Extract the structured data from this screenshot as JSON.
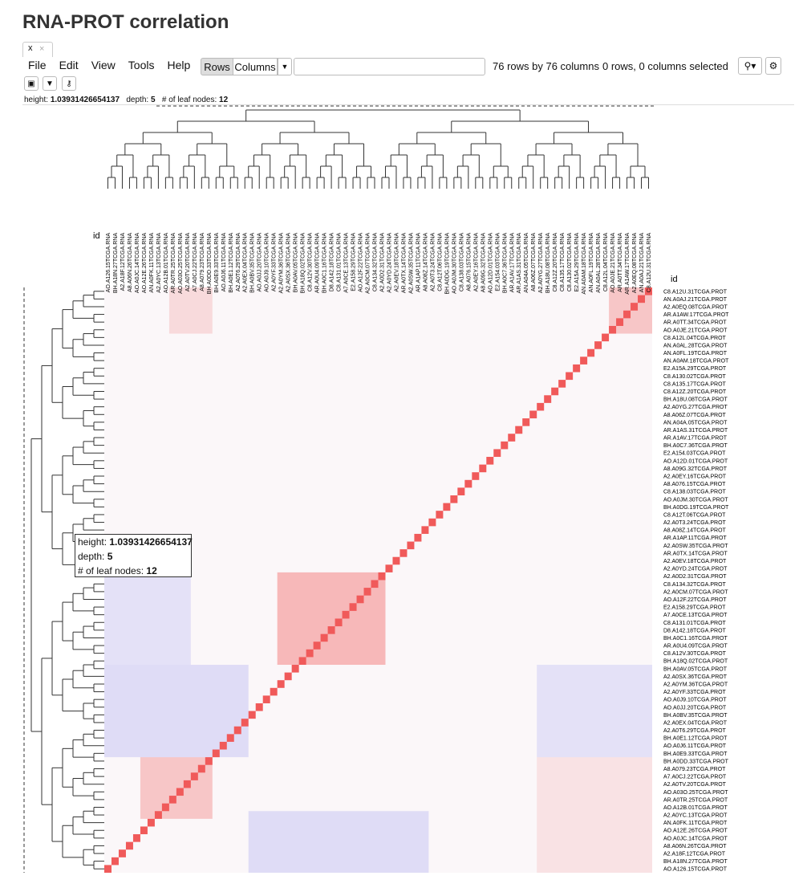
{
  "header": {
    "title": "RNA-PROT correlation",
    "tab": "x"
  },
  "menu": [
    "File",
    "Edit",
    "View",
    "Tools",
    "Help"
  ],
  "toolbar": {
    "rows_button": "Rows",
    "columns_button": "Columns",
    "dimensions": "76 rows by 76 columns",
    "selection": "0 rows, 0 columns selected"
  },
  "info": {
    "height_label": "height:",
    "height": "1.03931426654137",
    "depth_label": "depth:",
    "depth": "5",
    "leaves_label": "# of leaf nodes:",
    "leaves": "12"
  },
  "heatmap": {
    "column_header": "id",
    "row_header": "id",
    "rows": [
      "C8.A12U.31TCGA.PROT",
      "AN.A0AJ.21TCGA.PROT",
      "A2.A0EQ.08TCGA.PROT",
      "AR.A1AW.17TCGA.PROT",
      "AR.A0TT.34TCGA.PROT",
      "AO.A0JE.21TCGA.PROT",
      "C8.A12L.04TCGA.PROT",
      "AN.A0AL.28TCGA.PROT",
      "AN.A0FL.19TCGA.PROT",
      "AN.A0AM.18TCGA.PROT",
      "E2.A15A.29TCGA.PROT",
      "C8.A130.02TCGA.PROT",
      "C8.A135.17TCGA.PROT",
      "C8.A12Z.20TCGA.PROT",
      "BH.A18U.08TCGA.PROT",
      "A2.A0YG.27TCGA.PROT",
      "A8.A06Z.07TCGA.PROT",
      "AN.A04A.05TCGA.PROT",
      "AR.A1AS.31TCGA.PROT",
      "AR.A1AV.17TCGA.PROT",
      "BH.A0C7.36TCGA.PROT",
      "E2.A154.03TCGA.PROT",
      "AO.A12D.01TCGA.PROT",
      "A8.A09G.32TCGA.PROT",
      "A2.A0EY.16TCGA.PROT",
      "A8.A076.15TCGA.PROT",
      "C8.A138.03TCGA.PROT",
      "AO.A0JM.30TCGA.PROT",
      "BH.A0DG.19TCGA.PROT",
      "C8.A12T.06TCGA.PROT",
      "A2.A0T3.24TCGA.PROT",
      "A8.A08Z.14TCGA.PROT",
      "AR.A1AP.11TCGA.PROT",
      "A2.A0SW.35TCGA.PROT",
      "AR.A0TX.14TCGA.PROT",
      "A2.A0EV.18TCGA.PROT",
      "A2.A0YD.24TCGA.PROT",
      "A2.A0D2.31TCGA.PROT",
      "C8.A134.32TCGA.PROT",
      "A2.A0CM.07TCGA.PROT",
      "AO.A12F.22TCGA.PROT",
      "E2.A158.29TCGA.PROT",
      "A7.A0CE.13TCGA.PROT",
      "C8.A131.01TCGA.PROT",
      "D8.A142.18TCGA.PROT",
      "BH.A0C1.16TCGA.PROT",
      "AR.A0U4.09TCGA.PROT",
      "C8.A12V.30TCGA.PROT",
      "BH.A18Q.02TCGA.PROT",
      "BH.A0AV.05TCGA.PROT",
      "A2.A0SX.36TCGA.PROT",
      "A2.A0YM.36TCGA.PROT",
      "A2.A0YF.33TCGA.PROT",
      "AO.A0J9.10TCGA.PROT",
      "AO.A0JJ.20TCGA.PROT",
      "BH.A0BV.35TCGA.PROT",
      "A2.A0EX.04TCGA.PROT",
      "A2.A0T6.29TCGA.PROT",
      "BH.A0E1.12TCGA.PROT",
      "AO.A0J6.11TCGA.PROT",
      "BH.A0E9.33TCGA.PROT",
      "BH.A0DD.33TCGA.PROT",
      "A8.A079.23TCGA.PROT",
      "A7.A0CJ.22TCGA.PROT",
      "A2.A0TV.20TCGA.PROT",
      "AO.A03O.25TCGA.PROT",
      "AR.A0TR.25TCGA.PROT",
      "AO.A12B.01TCGA.PROT",
      "A2.A0YC.13TCGA.PROT",
      "AN.A0FK.11TCGA.PROT",
      "AO.A12E.26TCGA.PROT",
      "AO.A0JC.14TCGA.PROT",
      "A8.A06N.26TCGA.PROT",
      "A2.A18F.12TCGA.PROT",
      "BH.A18N.27TCGA.PROT",
      "AO.A126.15TCGA.PROT"
    ],
    "columns": [
      "AO.A126.15TCGA.RNA",
      "BH.A18N.27TCGA.RNA",
      "A2.A18F.12TCGA.RNA",
      "A8.A06N.26TCGA.RNA",
      "AO.A0JC.14TCGA.RNA",
      "AO.A12E.26TCGA.RNA",
      "AN.A0FK.11TCGA.RNA",
      "A2.A0YC.13TCGA.RNA",
      "AO.A12B.01TCGA.RNA",
      "AR.A0TR.25TCGA.RNA",
      "AO.A03O.25TCGA.RNA",
      "A2.A0TV.20TCGA.RNA",
      "A7.A0CJ.22TCGA.RNA",
      "A8.A079.23TCGA.RNA",
      "BH.A0DD.33TCGA.RNA",
      "BH.A0E9.33TCGA.RNA",
      "AO.A0J6.11TCGA.RNA",
      "BH.A0E1.12TCGA.RNA",
      "A2.A0T6.29TCGA.RNA",
      "A2.A0EX.04TCGA.RNA",
      "BH.A0BV.35TCGA.RNA",
      "AO.A0JJ.20TCGA.RNA",
      "AO.A0J9.10TCGA.RNA",
      "A2.A0YF.33TCGA.RNA",
      "A2.A0YM.36TCGA.RNA",
      "A2.A0SX.36TCGA.RNA",
      "BH.A0AV.05TCGA.RNA",
      "BH.A18Q.02TCGA.RNA",
      "C8.A12V.30TCGA.RNA",
      "AR.A0U4.09TCGA.RNA",
      "BH.A0C1.16TCGA.RNA",
      "D8.A142.18TCGA.RNA",
      "C8.A131.01TCGA.RNA",
      "A7.A0CE.13TCGA.RNA",
      "E2.A158.29TCGA.RNA",
      "AO.A12F.22TCGA.RNA",
      "A2.A0CM.07TCGA.RNA",
      "C8.A134.32TCGA.RNA",
      "A2.A0D2.31TCGA.RNA",
      "A2.A0YD.24TCGA.RNA",
      "A2.A0EV.18TCGA.RNA",
      "AR.A0TX.14TCGA.RNA",
      "A2.A0SW.35TCGA.RNA",
      "AR.A1AP.11TCGA.RNA",
      "A8.A08Z.14TCGA.RNA",
      "A2.A0T3.24TCGA.RNA",
      "C8.A12T.06TCGA.RNA",
      "BH.A0DG.19TCGA.RNA",
      "AO.A0JM.30TCGA.RNA",
      "C8.A138.03TCGA.RNA",
      "A8.A076.15TCGA.RNA",
      "A2.A0EY.16TCGA.RNA",
      "A8.A09G.32TCGA.RNA",
      "AO.A12D.01TCGA.RNA",
      "E2.A154.03TCGA.RNA",
      "BH.A0C7.36TCGA.RNA",
      "AR.A1AV.17TCGA.RNA",
      "AR.A1AS.31TCGA.RNA",
      "AN.A04A.05TCGA.RNA",
      "A8.A06Z.07TCGA.RNA",
      "A2.A0YG.27TCGA.RNA",
      "BH.A18U.08TCGA.RNA",
      "C8.A12Z.20TCGA.RNA",
      "C8.A135.17TCGA.RNA",
      "C8.A130.02TCGA.RNA",
      "E2.A15A.29TCGA.RNA",
      "AN.A0AM.18TCGA.RNA",
      "AN.A0FL.19TCGA.RNA",
      "AN.A0AL.28TCGA.RNA",
      "C8.A12L.04TCGA.RNA",
      "AO.A0JE.21TCGA.RNA",
      "AR.A0TT.34TCGA.RNA",
      "AR.A1AW.17TCGA.RNA",
      "A2.A0EQ.08TCGA.RNA",
      "AN.A0AJ.21TCGA.RNA",
      "C8.A12U.31TCGA.RNA"
    ]
  }
}
